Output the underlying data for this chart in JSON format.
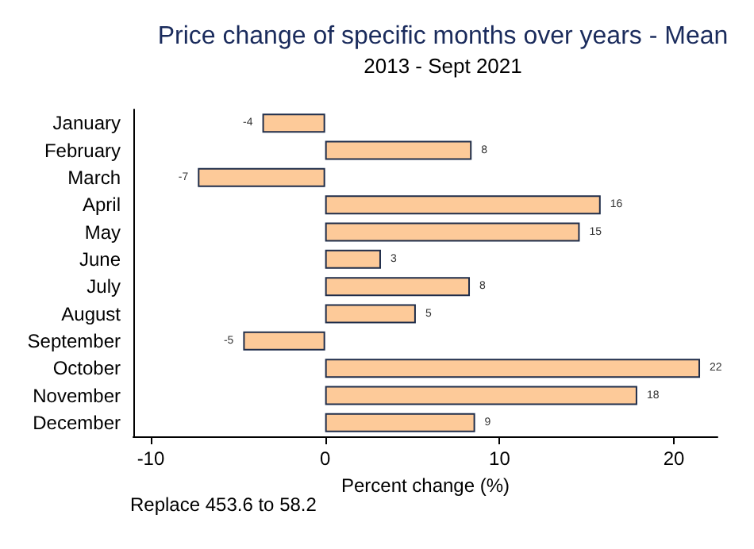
{
  "chart_data": {
    "type": "bar",
    "orientation": "horizontal",
    "title": "Price change of specific months over years - Mean",
    "subtitle": "2013 - Sept 2021",
    "xlabel": "Percent change (%)",
    "categories": [
      "January",
      "February",
      "March",
      "April",
      "May",
      "June",
      "July",
      "August",
      "September",
      "October",
      "November",
      "December"
    ],
    "values": [
      -3.6,
      8.4,
      -7.3,
      15.8,
      14.6,
      3.2,
      8.3,
      5.2,
      -4.7,
      21.5,
      17.9,
      8.6
    ],
    "value_labels": [
      "-4",
      "8",
      "-7",
      "16",
      "15",
      "3",
      "8",
      "5",
      "-5",
      "22",
      "18",
      "9"
    ],
    "color": "#fdca99",
    "xlim": [
      -11,
      22.5
    ],
    "xticks": [
      -10,
      0,
      10,
      20
    ],
    "grid": false,
    "annotations": [
      "Replace 453.6 to 58.2"
    ]
  }
}
